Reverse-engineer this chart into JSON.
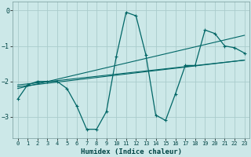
{
  "xlabel": "Humidex (Indice chaleur)",
  "ylabel": "",
  "background_color": "#cce8e8",
  "grid_color": "#aacccc",
  "line_color": "#006666",
  "xlim": [
    -0.5,
    23.5
  ],
  "ylim": [
    -3.6,
    0.25
  ],
  "yticks": [
    0,
    -1,
    -2,
    -3
  ],
  "xticks": [
    0,
    1,
    2,
    3,
    4,
    5,
    6,
    7,
    8,
    9,
    10,
    11,
    12,
    13,
    14,
    15,
    16,
    17,
    18,
    19,
    20,
    21,
    22,
    23
  ],
  "series": [
    {
      "x": [
        0,
        1,
        2,
        3,
        4,
        5,
        6,
        7,
        8,
        9,
        10,
        11,
        12,
        13,
        14,
        15,
        16,
        17,
        18,
        19,
        20,
        21,
        22,
        23
      ],
      "y": [
        -2.5,
        -2.1,
        -2.0,
        -2.0,
        -2.0,
        -2.2,
        -2.7,
        -3.35,
        -3.35,
        -2.85,
        -1.3,
        -0.05,
        -0.15,
        -1.25,
        -2.95,
        -3.1,
        -2.35,
        -1.55,
        -1.55,
        -0.55,
        -0.65,
        -1.0,
        -1.05,
        -1.2
      ],
      "marker": "+"
    },
    {
      "x": [
        0,
        23
      ],
      "y": [
        -2.1,
        -1.4
      ],
      "marker": null
    },
    {
      "x": [
        0,
        23
      ],
      "y": [
        -2.2,
        -0.7
      ],
      "marker": null
    },
    {
      "x": [
        0,
        23
      ],
      "y": [
        -2.15,
        -1.4
      ],
      "marker": null
    }
  ]
}
